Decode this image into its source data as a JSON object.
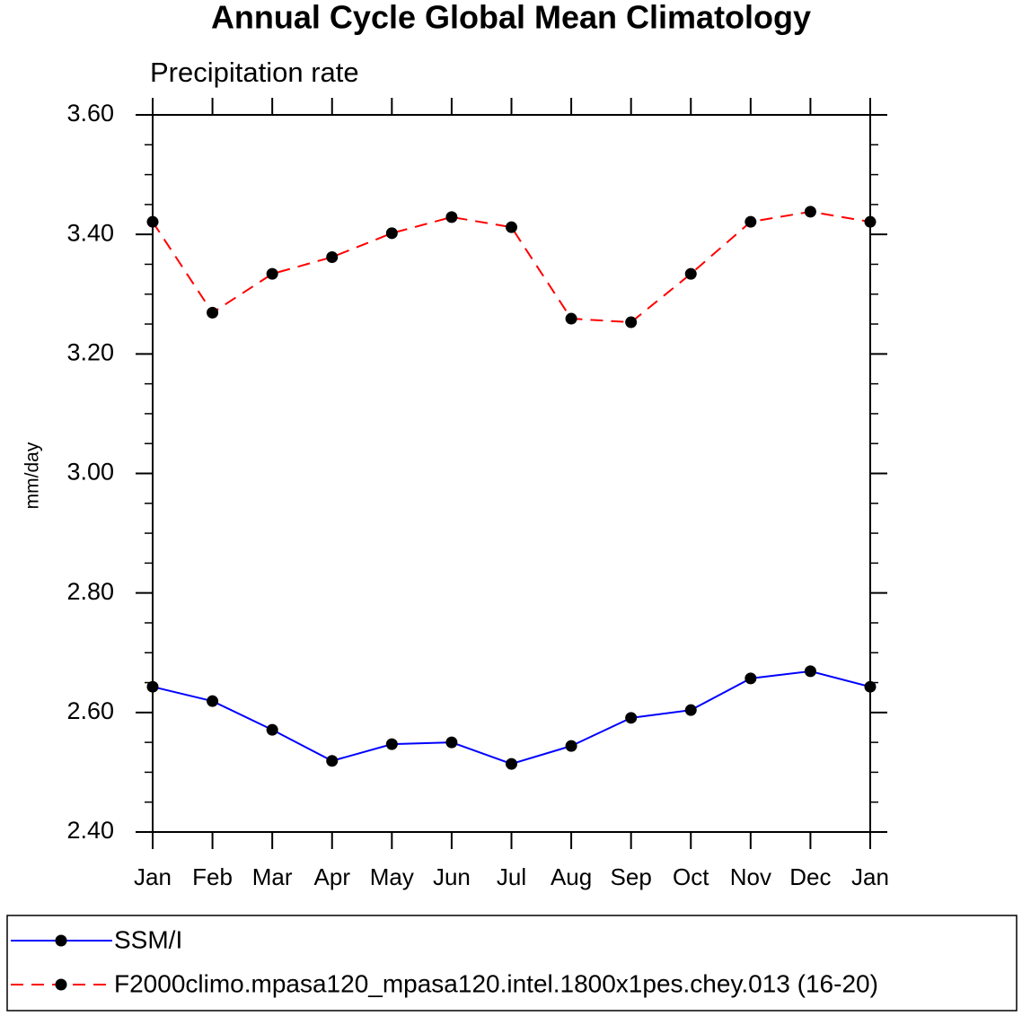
{
  "chart_data": {
    "type": "line",
    "title": "Annual Cycle Global Mean Climatology",
    "subtitle": "Precipitation rate",
    "y_label": "mm/day",
    "categories": [
      "Jan",
      "Feb",
      "Mar",
      "Apr",
      "May",
      "Jun",
      "Jul",
      "Aug",
      "Sep",
      "Oct",
      "Nov",
      "Dec",
      "Jan"
    ],
    "series": [
      {
        "name": "SSM/I",
        "color": "#0000ff",
        "line_style": "solid",
        "values": [
          2.643,
          2.619,
          2.571,
          2.519,
          2.547,
          2.55,
          2.514,
          2.544,
          2.591,
          2.604,
          2.657,
          2.669,
          2.643
        ]
      },
      {
        "name": "F2000climo.mpasa120_mpasa120.intel.1800x1pes.chey.013 (16-20)",
        "color": "#ff0000",
        "line_style": "dashed",
        "values": [
          3.421,
          3.269,
          3.334,
          3.362,
          3.402,
          3.429,
          3.412,
          3.259,
          3.253,
          3.334,
          3.421,
          3.438,
          3.421
        ]
      }
    ],
    "ylim": [
      2.4,
      3.6
    ],
    "yticks": [
      {
        "value": 2.4,
        "label": "2.40"
      },
      {
        "value": 2.6,
        "label": "2.60"
      },
      {
        "value": 2.8,
        "label": "2.80"
      },
      {
        "value": 3.0,
        "label": "3.00"
      },
      {
        "value": 3.2,
        "label": "3.20"
      },
      {
        "value": 3.4,
        "label": "3.40"
      },
      {
        "value": 3.6,
        "label": "3.60"
      }
    ],
    "yminor_ticks": [
      2.45,
      2.5,
      2.55,
      2.65,
      2.7,
      2.75,
      2.85,
      2.9,
      2.95,
      3.05,
      3.1,
      3.15,
      3.25,
      3.3,
      3.35,
      3.45,
      3.5,
      3.55
    ],
    "grid": false,
    "legend_position": "bottom"
  }
}
